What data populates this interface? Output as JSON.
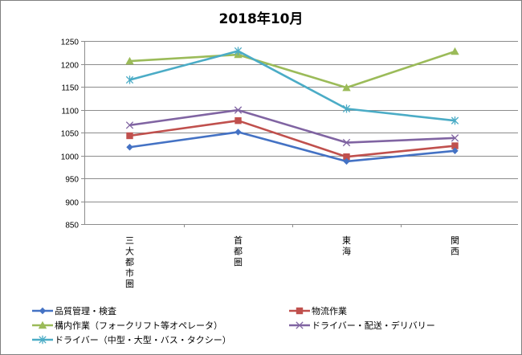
{
  "chart_data": {
    "type": "line",
    "title": "2018年10月",
    "xlabel": "",
    "ylabel": "",
    "ylim": [
      850,
      1250
    ],
    "yticks": [
      850,
      900,
      950,
      1000,
      1050,
      1100,
      1150,
      1200,
      1250
    ],
    "grid": true,
    "legend_position": "bottom",
    "categories": [
      "三大都市圏",
      "首都圏",
      "東海",
      "関西"
    ],
    "series": [
      {
        "name": "品質管理・検査",
        "color": "#4472c4",
        "marker": "diamond",
        "values": [
          1018,
          1051,
          987,
          1010
        ]
      },
      {
        "name": "物流作業",
        "color": "#c0504d",
        "marker": "square",
        "values": [
          1043,
          1076,
          997,
          1021
        ]
      },
      {
        "name": "構内作業（フォークリフト等オペレータ）",
        "color": "#9bbb59",
        "marker": "triangle",
        "values": [
          1206,
          1220,
          1148,
          1227
        ]
      },
      {
        "name": "ドライバー・配送・デリバリー",
        "color": "#8064a2",
        "marker": "x",
        "values": [
          1066,
          1099,
          1028,
          1038
        ]
      },
      {
        "name": "ドライバー（中型・大型・バス・タクシー）",
        "color": "#4bacc6",
        "marker": "star",
        "values": [
          1165,
          1228,
          1102,
          1076
        ]
      }
    ]
  }
}
